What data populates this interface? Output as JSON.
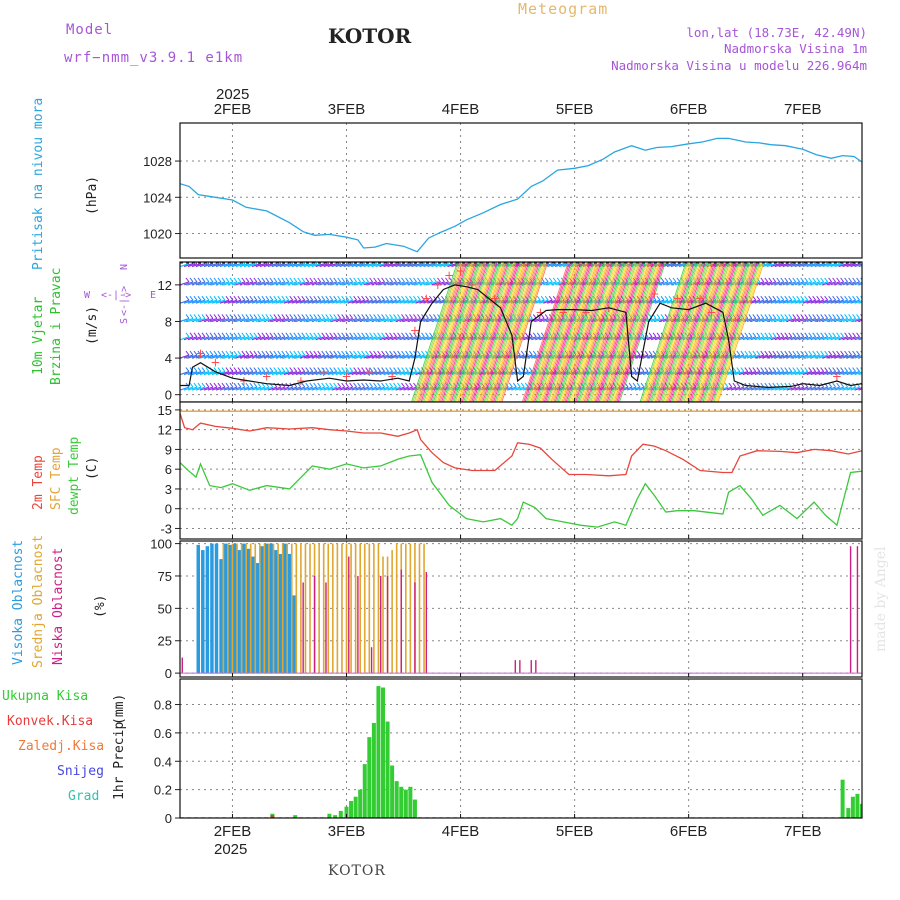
{
  "header": {
    "model_label": "Model",
    "model_name": "wrf−nmm_v3.9.1 e1km",
    "station": "KOTOR",
    "product": "Meteogram",
    "coords": "lon,lat (18.73E, 42.49N)",
    "elevation": "Nadmorska Visina 1m",
    "model_elevation": "Nadmorska Visina u modelu 226.964m"
  },
  "footer": {
    "station": "KOTOR",
    "credit": "made by Angel"
  },
  "time_axis": {
    "top_year": "2025",
    "bottom_year": "2025",
    "day_labels": [
      "2FEB",
      "3FEB",
      "4FEB",
      "5FEB",
      "6FEB",
      "7FEB"
    ],
    "range_days": [
      1.54,
      7.52
    ]
  },
  "colors": {
    "pressure": "#29a6e0",
    "temp2m": "#e8463c",
    "sfc_temp": "#e3a33a",
    "dewpt": "#3bc93b",
    "high_cloud": "#2b9be0",
    "mid_cloud": "#dfa632",
    "low_cloud": "#cc1e86",
    "total_precip": "#33cc33",
    "conv_precip": "#e83b3b",
    "frozen_precip": "#f07a36",
    "snow": "#4747e0",
    "graupel": "#36c0b0",
    "wind_label": "#2fc02f",
    "header_purple": "#a656d6",
    "meteogram_orange": "#e6b86a"
  },
  "chart_data": [
    {
      "type": "line",
      "panel": "pressure",
      "ylabel_name": "Pritisak na nivou mora",
      "ylabel_unit": "(hPa)",
      "ylim": [
        1017.3,
        1032.2
      ],
      "yticks": [
        1020,
        1024,
        1028
      ],
      "grid": true,
      "series": [
        {
          "x": [
            1.54,
            1.62,
            1.7,
            1.85,
            2.0,
            2.12,
            2.3,
            2.5,
            2.62,
            2.72,
            2.85,
            3.0,
            3.1,
            3.15,
            3.25,
            3.35,
            3.5,
            3.62,
            3.72,
            3.82,
            3.95,
            4.05,
            4.2,
            4.35,
            4.5,
            4.62,
            4.72,
            4.85,
            5.0,
            5.12,
            5.25,
            5.35,
            5.5,
            5.62,
            5.72,
            5.85,
            6.0,
            6.12,
            6.25,
            6.35,
            6.5,
            6.62,
            6.72,
            6.85,
            7.0,
            7.12,
            7.25,
            7.35,
            7.45,
            7.52
          ],
          "y": [
            1025.5,
            1025.2,
            1024.3,
            1024.0,
            1023.7,
            1022.9,
            1022.5,
            1021.2,
            1020.2,
            1019.8,
            1019.9,
            1019.6,
            1019.3,
            1018.4,
            1018.5,
            1018.9,
            1018.6,
            1018.0,
            1019.5,
            1020.1,
            1020.8,
            1021.5,
            1022.3,
            1023.2,
            1023.8,
            1025.2,
            1025.8,
            1027.0,
            1027.2,
            1027.5,
            1028.2,
            1029.0,
            1029.7,
            1029.2,
            1029.5,
            1029.6,
            1029.9,
            1030.1,
            1030.5,
            1030.5,
            1030.1,
            1030.0,
            1029.8,
            1029.7,
            1029.3,
            1028.7,
            1028.3,
            1028.6,
            1028.5,
            1027.9
          ]
        }
      ]
    },
    {
      "type": "barbs",
      "panel": "wind",
      "ylabel_name": "10m Vjetar",
      "ylabel_name2": "Brzina i Pravac",
      "ylabel_unit": "(m/s)",
      "compass": {
        "n": "N",
        "w": "W",
        "e": "E",
        "s": "S"
      },
      "ylim": [
        -0.8,
        14.5
      ],
      "yticks": [
        0,
        4,
        8,
        12
      ],
      "grid": true,
      "series": [
        {
          "name": "speed",
          "x": [
            1.54,
            1.62,
            1.65,
            1.72,
            1.85,
            2.0,
            2.15,
            2.3,
            2.5,
            2.65,
            2.85,
            3.0,
            3.15,
            3.3,
            3.45,
            3.55,
            3.6,
            3.65,
            3.75,
            3.85,
            3.95,
            4.05,
            4.15,
            4.25,
            4.35,
            4.45,
            4.5,
            4.55,
            4.62,
            4.75,
            4.85,
            5.0,
            5.15,
            5.3,
            5.45,
            5.5,
            5.55,
            5.65,
            5.75,
            5.85,
            6.0,
            6.15,
            6.3,
            6.35,
            6.4,
            6.5,
            6.7,
            6.9,
            7.0,
            7.15,
            7.3,
            7.42,
            7.52
          ],
          "y": [
            1.0,
            1.0,
            3.0,
            3.5,
            2.5,
            1.8,
            1.5,
            1.2,
            1.0,
            1.5,
            1.8,
            1.5,
            1.6,
            1.5,
            1.8,
            1.5,
            4.0,
            8.0,
            10.0,
            11.5,
            12.0,
            11.8,
            11.5,
            10.5,
            9.5,
            6.5,
            1.5,
            2.0,
            8.0,
            9.2,
            9.3,
            9.3,
            9.2,
            9.5,
            9.0,
            2.0,
            1.5,
            8.0,
            10.0,
            9.5,
            9.3,
            10.0,
            9.0,
            6.0,
            1.5,
            1.0,
            0.8,
            0.9,
            1.2,
            1.0,
            1.5,
            1.0,
            1.2
          ]
        },
        {
          "name": "max_markers",
          "x": [
            1.72,
            1.85,
            2.1,
            2.3,
            2.6,
            2.8,
            3.0,
            3.2,
            3.4,
            3.6,
            3.7,
            3.8,
            3.9,
            4.0,
            4.1,
            4.3,
            4.7,
            4.9,
            5.1,
            5.3,
            5.7,
            5.9,
            6.1,
            6.2,
            7.3
          ],
          "y": [
            4.5,
            3.5,
            1.5,
            2.0,
            1.5,
            2.5,
            2.0,
            2.5,
            2.0,
            7.0,
            10.5,
            12.0,
            13.0,
            13.5,
            12.0,
            10.5,
            9.0,
            9.0,
            9.0,
            9.5,
            11.0,
            10.5,
            10.5,
            9.0,
            2.0
          ]
        }
      ]
    },
    {
      "type": "line",
      "panel": "temperature",
      "ylabel_name": "2m Temp",
      "ylabel_name2": "SFC Temp",
      "ylabel_name3": "dewpt Temp",
      "ylabel_unit": "(C)",
      "ylim": [
        -4.6,
        16.2
      ],
      "yticks": [
        -3,
        0,
        3,
        6,
        9,
        12,
        15
      ],
      "grid": true,
      "series": [
        {
          "name": "2m Temp",
          "x": [
            1.54,
            1.58,
            1.65,
            1.72,
            1.85,
            2.0,
            2.15,
            2.3,
            2.5,
            2.7,
            2.85,
            3.0,
            3.15,
            3.3,
            3.45,
            3.55,
            3.62,
            3.65,
            3.75,
            3.85,
            3.95,
            4.1,
            4.3,
            4.45,
            4.5,
            4.6,
            4.7,
            4.8,
            4.95,
            5.1,
            5.3,
            5.45,
            5.5,
            5.6,
            5.7,
            5.8,
            5.95,
            6.1,
            6.3,
            6.38,
            6.45,
            6.6,
            6.8,
            6.95,
            7.1,
            7.25,
            7.4,
            7.52
          ],
          "y": [
            14.5,
            12.3,
            12.0,
            13.0,
            12.5,
            12.2,
            11.8,
            12.3,
            12.1,
            12.3,
            12.0,
            11.8,
            11.5,
            11.5,
            11.0,
            11.5,
            12.0,
            10.5,
            8.5,
            7.0,
            6.2,
            5.8,
            5.8,
            8.0,
            10.0,
            9.8,
            9.2,
            7.5,
            5.2,
            5.2,
            5.0,
            5.2,
            8.0,
            9.8,
            9.5,
            8.8,
            7.5,
            5.8,
            5.5,
            5.5,
            8.0,
            8.8,
            8.7,
            8.5,
            9.0,
            8.8,
            8.3,
            8.8
          ]
        },
        {
          "name": "SFC Temp",
          "x": [
            1.54,
            7.52
          ],
          "y": [
            14.8,
            14.8
          ]
        },
        {
          "name": "dewpt Temp",
          "x": [
            1.54,
            1.6,
            1.68,
            1.72,
            1.8,
            1.9,
            2.0,
            2.15,
            2.3,
            2.5,
            2.7,
            2.85,
            3.0,
            3.15,
            3.3,
            3.45,
            3.55,
            3.65,
            3.75,
            3.9,
            4.05,
            4.2,
            4.35,
            4.45,
            4.5,
            4.55,
            4.65,
            4.75,
            4.9,
            5.05,
            5.2,
            5.35,
            5.45,
            5.55,
            5.62,
            5.7,
            5.8,
            5.9,
            6.05,
            6.2,
            6.3,
            6.35,
            6.45,
            6.55,
            6.65,
            6.8,
            6.95,
            7.1,
            7.2,
            7.3,
            7.42,
            7.52
          ],
          "y": [
            7.0,
            6.0,
            4.8,
            6.8,
            3.5,
            3.2,
            3.8,
            2.8,
            3.5,
            3.0,
            6.5,
            6.0,
            6.8,
            6.2,
            6.5,
            7.5,
            8.0,
            8.2,
            4.0,
            0.5,
            -1.5,
            -2.0,
            -1.5,
            -2.5,
            -1.5,
            1.0,
            0.2,
            -1.5,
            -2.0,
            -2.5,
            -2.8,
            -2.0,
            -2.5,
            1.5,
            3.8,
            2.0,
            -0.5,
            -0.3,
            -0.3,
            -0.6,
            -0.8,
            2.5,
            3.5,
            1.5,
            -1.0,
            0.5,
            -1.5,
            1.0,
            -1.0,
            -2.5,
            5.5,
            5.7
          ]
        }
      ]
    },
    {
      "type": "bar",
      "panel": "cloud",
      "ylabel_name": "Visoka Oblacnost",
      "ylabel_name2": "Srednja Oblacnost",
      "ylabel_name3": "Niska Oblacnost",
      "ylabel_unit": "(%)",
      "ylim": [
        -3,
        102
      ],
      "yticks": [
        0,
        25,
        50,
        75,
        100
      ],
      "grid": true,
      "series": [
        {
          "name": "high",
          "x": [
            1.7,
            1.74,
            1.78,
            1.82,
            1.86,
            1.9,
            1.94,
            1.98,
            2.02,
            2.06,
            2.1,
            2.14,
            2.18,
            2.22,
            2.26,
            2.3,
            2.34,
            2.38,
            2.42,
            2.46,
            2.5,
            2.54
          ],
          "y": [
            99,
            95,
            98,
            100,
            100,
            88,
            100,
            99,
            100,
            95,
            100,
            96,
            90,
            85,
            98,
            100,
            100,
            95,
            92,
            100,
            92,
            60
          ]
        },
        {
          "name": "mid",
          "x": [
            1.92,
            1.96,
            2.0,
            2.04,
            2.08,
            2.12,
            2.16,
            2.2,
            2.24,
            2.28,
            2.32,
            2.36,
            2.4,
            2.44,
            2.48,
            2.52,
            2.56,
            2.6,
            2.64,
            2.68,
            2.72,
            2.76,
            2.8,
            2.84,
            2.88,
            2.92,
            2.96,
            3.0,
            3.04,
            3.08,
            3.12,
            3.16,
            3.2,
            3.24,
            3.28,
            3.32,
            3.36,
            3.4,
            3.44,
            3.48,
            3.52,
            3.56,
            3.6,
            3.64,
            3.68
          ],
          "y": [
            100,
            100,
            100,
            100,
            100,
            100,
            100,
            100,
            100,
            100,
            100,
            100,
            100,
            100,
            100,
            100,
            100,
            100,
            100,
            100,
            100,
            100,
            100,
            100,
            100,
            100,
            100,
            100,
            100,
            100,
            100,
            100,
            100,
            100,
            100,
            90,
            90,
            95,
            100,
            100,
            100,
            100,
            100,
            100,
            100
          ]
        },
        {
          "name": "low",
          "x": [
            1.56,
            2.62,
            2.72,
            2.82,
            3.02,
            3.1,
            3.22,
            3.3,
            3.36,
            3.48,
            3.6,
            3.7,
            4.48,
            4.52,
            4.62,
            4.66,
            7.42,
            7.48
          ],
          "y": [
            12,
            70,
            75,
            70,
            90,
            75,
            20,
            75,
            75,
            80,
            70,
            78,
            10,
            10,
            10,
            10,
            98,
            98
          ]
        }
      ]
    },
    {
      "type": "bar",
      "panel": "precip",
      "legend": [
        "Ukupna Kisa",
        "Konvek.Kisa",
        "Zaledj.Kisa",
        "Snijeg",
        "Grad"
      ],
      "ylabel_name": "1hr Precip",
      "ylabel_unit": "(mm)",
      "ylim": [
        0,
        0.98
      ],
      "yticks": [
        0,
        0.2,
        0.4,
        0.6,
        0.8
      ],
      "grid": true,
      "series": [
        {
          "name": "Ukupna Kisa",
          "x": [
            2.35,
            2.55,
            2.85,
            2.9,
            2.95,
            3.0,
            3.04,
            3.08,
            3.12,
            3.16,
            3.2,
            3.24,
            3.28,
            3.32,
            3.36,
            3.4,
            3.44,
            3.48,
            3.52,
            3.56,
            3.6,
            7.35,
            7.4,
            7.44,
            7.48,
            7.52
          ],
          "y": [
            0.03,
            0.02,
            0.03,
            0.02,
            0.05,
            0.08,
            0.12,
            0.15,
            0.2,
            0.38,
            0.57,
            0.67,
            0.93,
            0.92,
            0.68,
            0.37,
            0.26,
            0.22,
            0.2,
            0.22,
            0.13,
            0.27,
            0.07,
            0.15,
            0.17,
            0.1
          ]
        },
        {
          "name": "Konvek.Kisa",
          "x": [
            2.35
          ],
          "y": [
            0.02
          ]
        }
      ]
    }
  ]
}
